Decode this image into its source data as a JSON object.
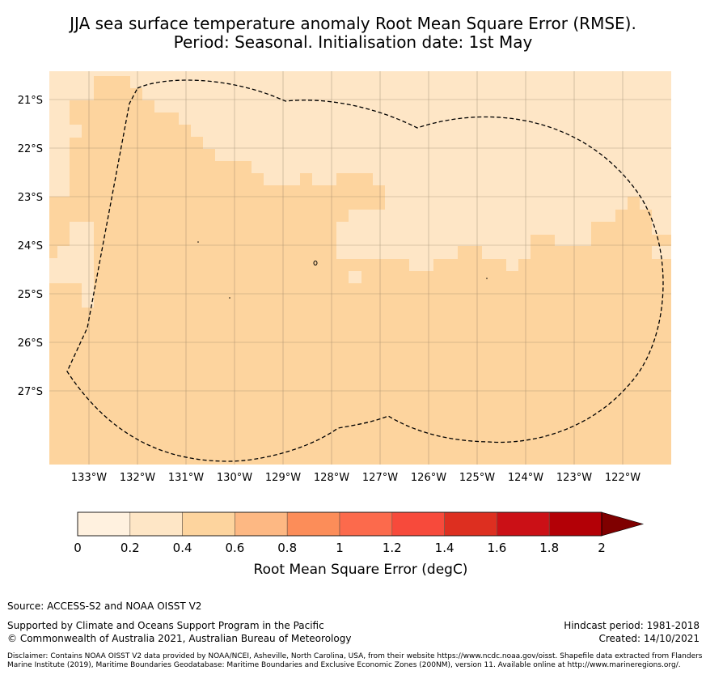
{
  "title": {
    "line1": "JJA sea surface temperature anomaly Root Mean Square Error (RMSE).",
    "line2": "Period: Seasonal. Initialisation date: 1st May"
  },
  "map": {
    "lat_labels": [
      "21°S",
      "22°S",
      "23°S",
      "24°S",
      "25°S",
      "26°S",
      "27°S"
    ],
    "lon_labels": [
      "133°W",
      "132°W",
      "131°W",
      "130°W",
      "129°W",
      "128°W",
      "127°W",
      "126°W",
      "125°W",
      "124°W",
      "123°W",
      "122°W"
    ],
    "fill_colors": {
      "rmse_0_2_to_0_4": "#fee6c6",
      "rmse_0_4_to_0_6": "#fdd49e",
      "rmse_0_0_to_0_2": "#fff1df"
    },
    "boundary_style": "dashed black line (EEZ)"
  },
  "colorbar": {
    "label": "Root Mean Square Error (degC)",
    "ticks": [
      "0",
      "0.2",
      "0.4",
      "0.6",
      "0.8",
      "1",
      "1.2",
      "1.4",
      "1.6",
      "1.8",
      "2"
    ],
    "colors": [
      "#fff1df",
      "#fee6c6",
      "#fdd49e",
      "#fdb883",
      "#fc8d59",
      "#fc6a4c",
      "#f74a3b",
      "#dd2f20",
      "#cb1016",
      "#b30006",
      "#7f0000"
    ],
    "extend": "max"
  },
  "footer": {
    "source": "Source: ACCESS-S2 and NOAA OISST V2",
    "supported": "Supported by Climate and Oceans Support Program in the Pacific",
    "copyright": "© Commonwealth of Australia 2021, Australian Bureau of Meteorology",
    "hindcast": "Hindcast period: 1981-2018",
    "created": "Created: 14/10/2021",
    "disclaimer": "Disclaimer: Contains NOAA OISST V2 data provided by NOAA/NCEI, Asheville, North Carolina, USA, from their website https://www.ncdc.noaa.gov/oisst. Shapefile data extracted from Flanders Marine Institute (2019), Maritime Boundaries Geodatabase: Maritime Boundaries and Exclusive Economic Zones (200NM), version 11. Available online at http://www.marineregions.org/."
  }
}
